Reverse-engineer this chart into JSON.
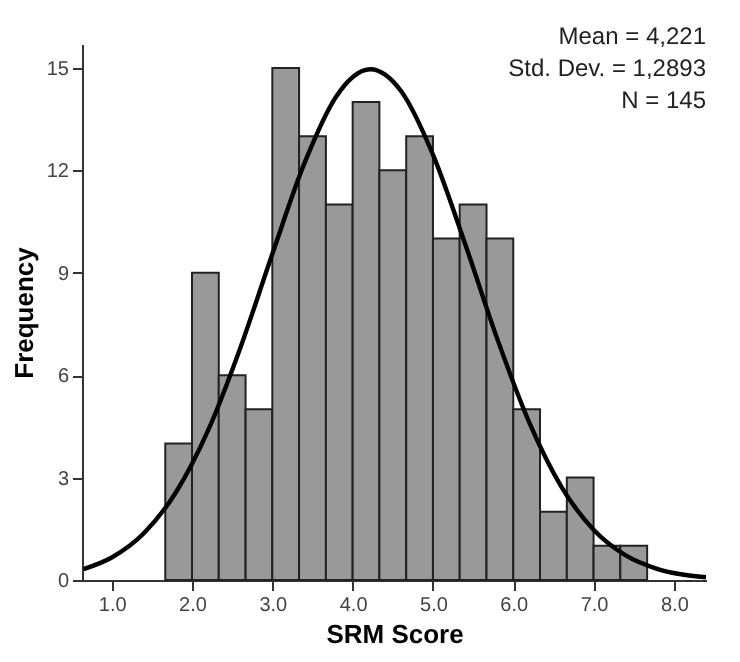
{
  "chart_data": {
    "type": "histogram",
    "xlabel": "SRM Score",
    "ylabel": "Frequency",
    "annotations": [
      "Mean = 4,221",
      "Std. Dev. = 1,2893",
      "N = 145"
    ],
    "bins": [
      1.667,
      2.0,
      2.333,
      2.667,
      3.0,
      3.333,
      3.667,
      4.0,
      4.333,
      4.667,
      5.0,
      5.333,
      5.667,
      6.0,
      6.333,
      6.667,
      7.0,
      7.333,
      7.667
    ],
    "series": [
      {
        "color": "#999999",
        "values": [
          4,
          9,
          6,
          5,
          15,
          13,
          11,
          14,
          12,
          13,
          10,
          11,
          10,
          5,
          2,
          3,
          1,
          1
        ]
      },
      {
        "type": "line",
        "color": "#000000",
        "x": [
          0.65,
          1.0,
          1.4,
          1.8,
          2.2,
          2.6,
          3.0,
          3.4,
          3.8,
          4.221,
          4.6,
          5.0,
          5.4,
          5.8,
          6.2,
          6.6,
          7.0,
          7.4,
          7.8,
          8.4
        ],
        "values": [
          0.32,
          0.66,
          1.37,
          2.57,
          4.38,
          6.79,
          9.55,
          12.21,
          14.18,
          14.96,
          14.33,
          12.46,
          9.85,
          7.07,
          4.61,
          2.73,
          1.47,
          0.72,
          0.32,
          0.08
        ]
      }
    ],
    "xlim": [
      0.63,
      8.4
    ],
    "ylim": [
      0,
      15.7
    ],
    "xticks": [
      {
        "value": 1,
        "label": "1.0"
      },
      {
        "value": 2,
        "label": "2.0"
      },
      {
        "value": 3,
        "label": "3.0"
      },
      {
        "value": 4,
        "label": "4.0"
      },
      {
        "value": 5,
        "label": "5.0"
      },
      {
        "value": 6,
        "label": "6.0"
      },
      {
        "value": 7,
        "label": "7.0"
      },
      {
        "value": 8,
        "label": "8.0"
      }
    ],
    "yticks": [
      0,
      3,
      6,
      9,
      12,
      15
    ],
    "grid": false
  }
}
